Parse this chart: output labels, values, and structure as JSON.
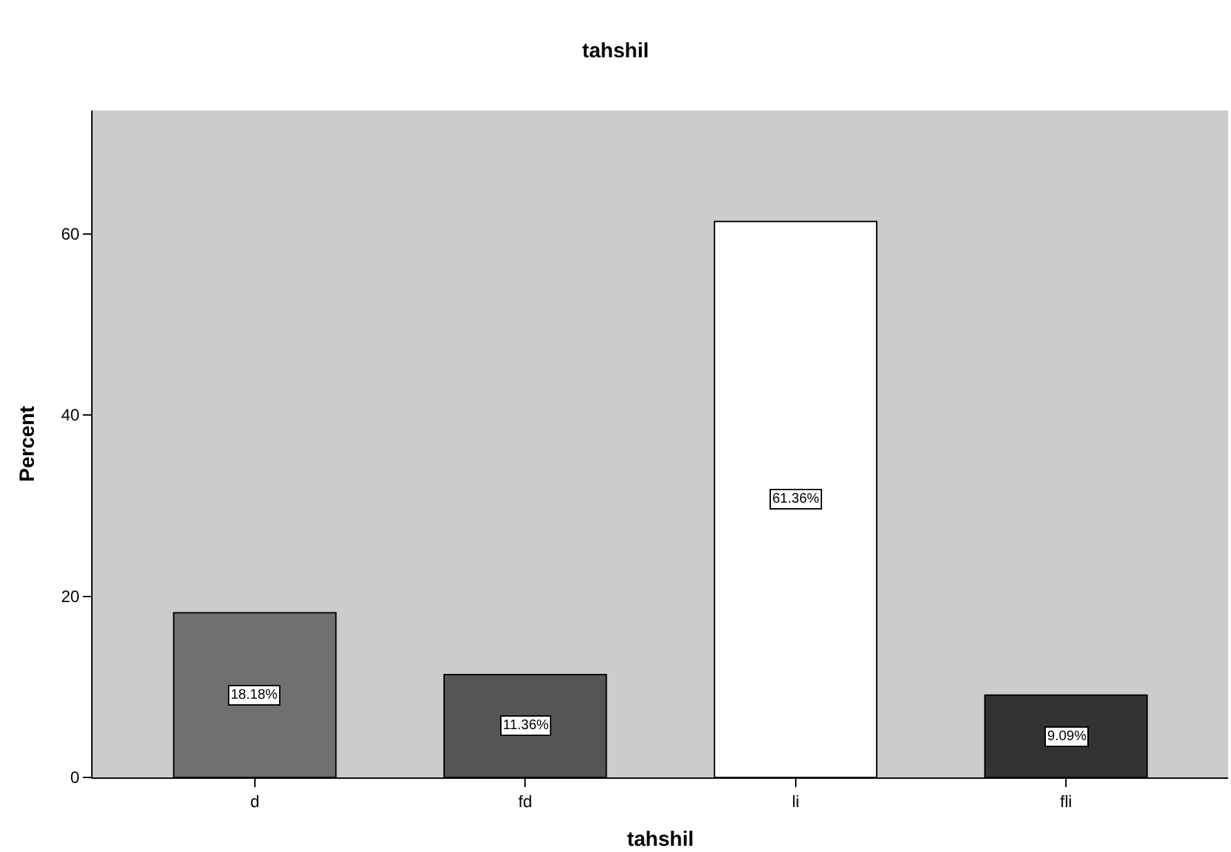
{
  "chart_data": {
    "type": "bar",
    "title": "tahshil",
    "xlabel": "tahshil",
    "ylabel": "Percent",
    "categories": [
      "d",
      "fd",
      "li",
      "fli"
    ],
    "values": [
      18.18,
      11.36,
      61.36,
      9.09
    ],
    "colors": [
      "#707070",
      "#555555",
      "#ffffff",
      "#333333"
    ],
    "value_labels": [
      "18.18%",
      "11.36%",
      "61.36%",
      "9.09%"
    ],
    "ylim": [
      0,
      73.6
    ],
    "yticks": [
      0,
      20,
      40,
      60
    ],
    "grid": false,
    "legend": false
  }
}
